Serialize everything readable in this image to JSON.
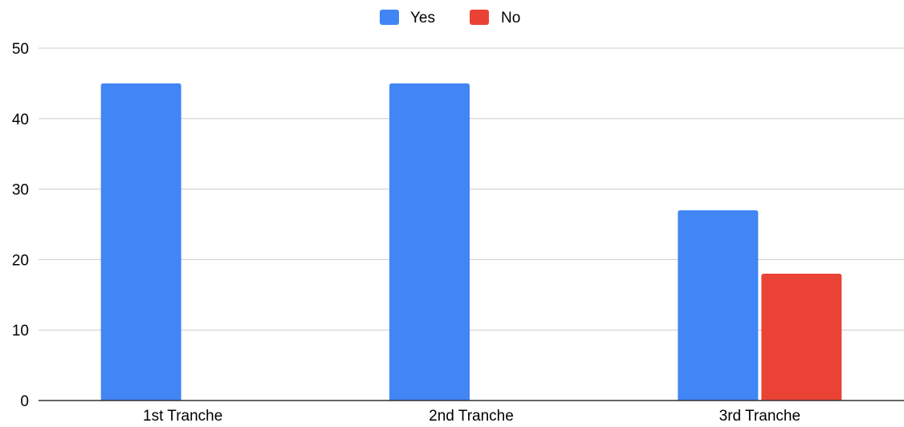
{
  "chart_data": {
    "type": "bar",
    "categories": [
      "1st Tranche",
      "2nd Tranche",
      "3rd Tranche"
    ],
    "series": [
      {
        "name": "Yes",
        "color": "#4285f4",
        "values": [
          45,
          45,
          27
        ]
      },
      {
        "name": "No",
        "color": "#ea4335",
        "values": [
          0,
          0,
          18
        ]
      }
    ],
    "title": "",
    "xlabel": "",
    "ylabel": "",
    "ylim": [
      0,
      50
    ],
    "yticks": [
      "0",
      "10",
      "20",
      "30",
      "40",
      "50"
    ],
    "grid": true,
    "legend_position": "top-center"
  }
}
